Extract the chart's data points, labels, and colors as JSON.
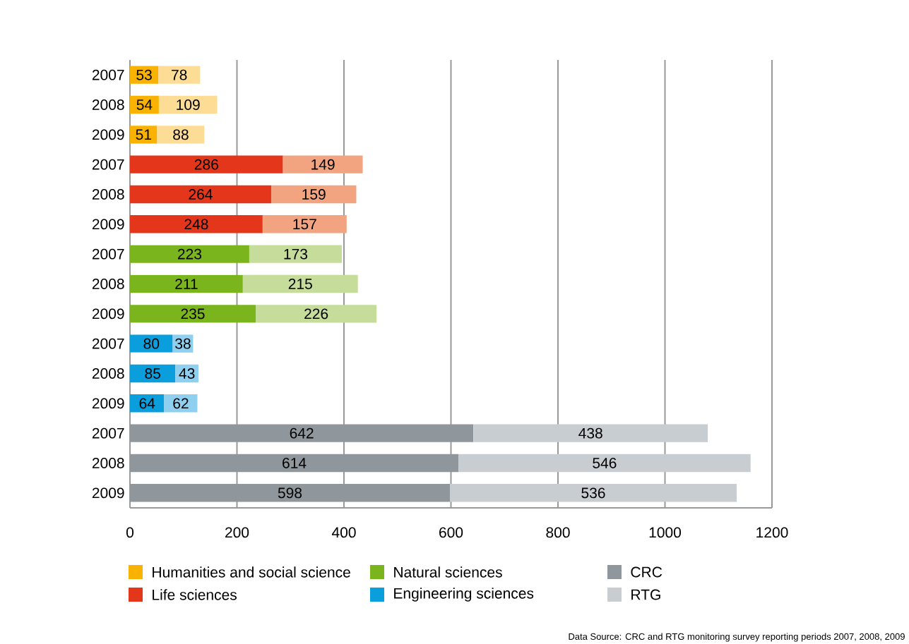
{
  "chart_data": {
    "type": "bar",
    "orientation": "horizontal",
    "stacked": true,
    "data_labels": true,
    "grid": "x",
    "legend": "bottom",
    "categories": [
      "2007",
      "2008",
      "2009",
      "2007",
      "2008",
      "2009",
      "2007",
      "2008",
      "2009",
      "2007",
      "2008",
      "2009",
      "2007",
      "2008",
      "2009"
    ],
    "xlim": [
      0,
      1200
    ],
    "xticks": [
      0,
      200,
      400,
      600,
      800,
      1000,
      1200
    ],
    "series": [
      {
        "name": "Humanities and social science",
        "color": "#f9b200",
        "values": [
          53,
          54,
          51,
          null,
          null,
          null,
          null,
          null,
          null,
          null,
          null,
          null,
          null,
          null,
          null
        ]
      },
      {
        "color": "#fddc96",
        "values": [
          78,
          109,
          88,
          null,
          null,
          null,
          null,
          null,
          null,
          null,
          null,
          null,
          null,
          null,
          null
        ]
      },
      {
        "name": "Life sciences",
        "color": "#e4361b",
        "values": [
          null,
          null,
          null,
          286,
          264,
          248,
          null,
          null,
          null,
          null,
          null,
          null,
          null,
          null,
          null
        ]
      },
      {
        "color": "#f2a37f",
        "values": [
          null,
          null,
          null,
          149,
          159,
          157,
          null,
          null,
          null,
          null,
          null,
          null,
          null,
          null,
          null
        ]
      },
      {
        "name": "Natural sciences",
        "color": "#7ab51d",
        "values": [
          null,
          null,
          null,
          null,
          null,
          null,
          223,
          211,
          235,
          null,
          null,
          null,
          null,
          null,
          null
        ]
      },
      {
        "color": "#c5dc9b",
        "values": [
          null,
          null,
          null,
          null,
          null,
          null,
          173,
          215,
          226,
          null,
          null,
          null,
          null,
          null,
          null
        ]
      },
      {
        "name": "Engineering sciences",
        "color": "#0a9fdc",
        "values": [
          null,
          null,
          null,
          null,
          null,
          null,
          null,
          null,
          null,
          80,
          85,
          64,
          null,
          null,
          null
        ]
      },
      {
        "color": "#8fd0f0",
        "values": [
          null,
          null,
          null,
          null,
          null,
          null,
          null,
          null,
          null,
          38,
          43,
          62,
          null,
          null,
          null
        ]
      },
      {
        "name": "CRC",
        "color": "#8f979c",
        "values": [
          null,
          null,
          null,
          null,
          null,
          null,
          null,
          null,
          null,
          null,
          null,
          null,
          642,
          614,
          598
        ]
      },
      {
        "name": "RTG",
        "color": "#c8cdd1",
        "values": [
          null,
          null,
          null,
          null,
          null,
          null,
          null,
          null,
          null,
          null,
          null,
          null,
          438,
          546,
          536
        ]
      }
    ],
    "annotations": [
      "Data Source: CRC and RTG monitoring survey reporting periods 2007, 2008, 2009"
    ]
  }
}
